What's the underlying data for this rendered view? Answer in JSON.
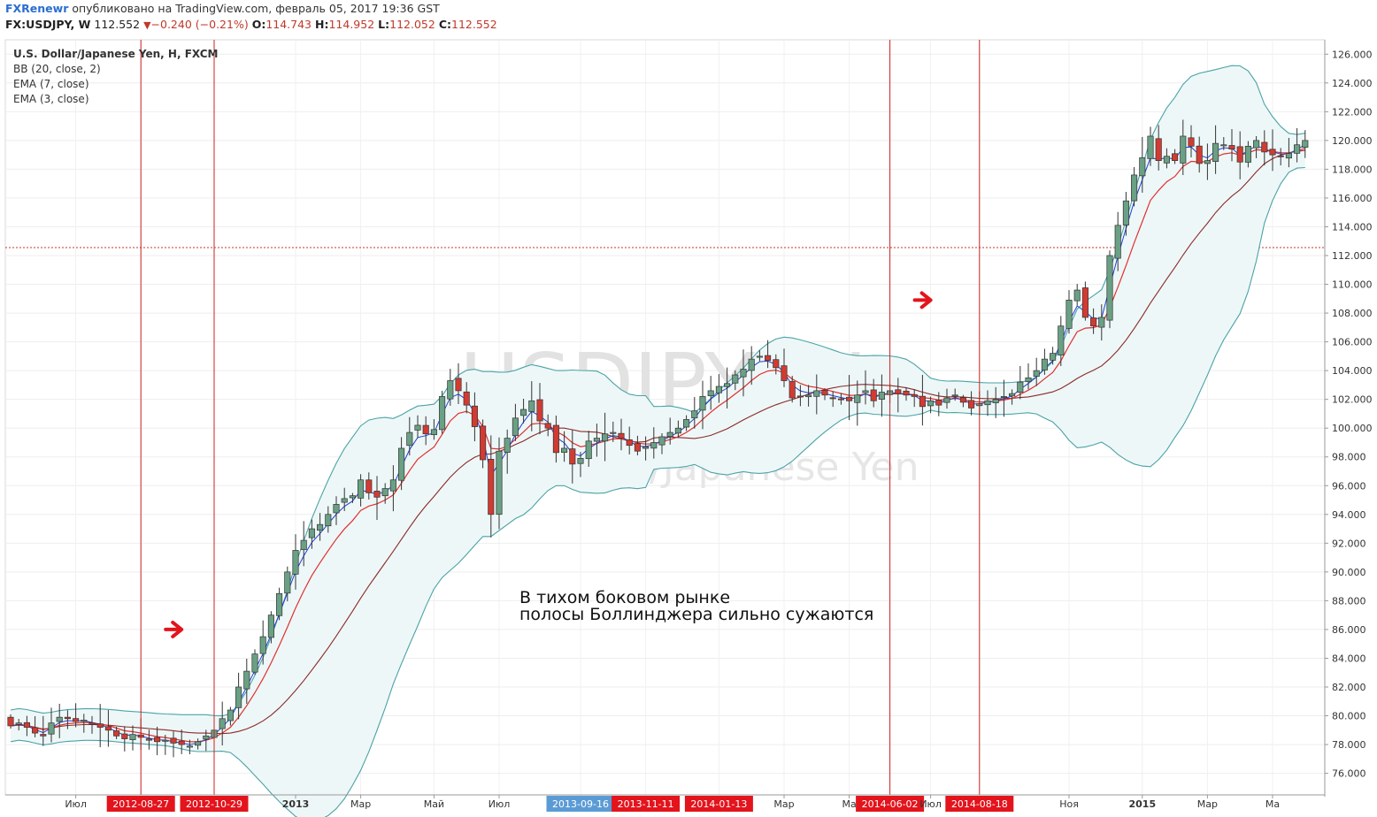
{
  "header": {
    "brand": "FXRenewr",
    "published": "опубликовано на TradingView.com, февраль 05, 2017 19:36 GST",
    "symbol": "FX:USDJPY, W",
    "last": "112.552",
    "change": "−0.240 (−0.21%)",
    "open_label": "O:",
    "open": "114.743",
    "high_label": "H:",
    "high": "114.952",
    "low_label": "L:",
    "low": "112.052",
    "close_label": "C:",
    "close": "112.552"
  },
  "legend": {
    "title": "U.S. Dollar/Japanese Yen, H, FXCM",
    "items": [
      "BB (20, close, 2)",
      "EMA (7, close)",
      "EMA (3, close)"
    ]
  },
  "watermark": {
    "symbol": "USDJPY, H",
    "name": "U.S. Dollar/Japanese Yen"
  },
  "annotation": {
    "line1": "В тихом боковом рынке",
    "line2": "полосы Боллинджера сильно сужаются"
  },
  "colors": {
    "up": "#6aa084",
    "down": "#d23b32",
    "band": "#4aa3a8",
    "band_fill": "#eef7f7",
    "ema_fast": "#1f3fd6",
    "ema_mid": "#e03030",
    "bb_basis": "#8b2a2a",
    "vline": "#cc2222",
    "hl_red": "#e3141c",
    "hl_blue": "#5b9bd5"
  },
  "chart_data": {
    "type": "candlestick",
    "ylim": [
      74.5,
      127
    ],
    "y_ticks": [
      "76.000",
      "78.000",
      "80.000",
      "82.000",
      "84.000",
      "86.000",
      "88.000",
      "90.000",
      "92.000",
      "94.000",
      "96.000",
      "98.000",
      "100.000",
      "102.000",
      "104.000",
      "106.000",
      "108.000",
      "110.000",
      "112.000",
      "114.000",
      "116.000",
      "118.000",
      "120.000",
      "122.000",
      "124.000",
      "126.000"
    ],
    "current_price": 112.552,
    "x_labels": [
      {
        "text": "Июл",
        "i": 8,
        "hl": ""
      },
      {
        "text": "2012-08-27",
        "i": 16,
        "hl": "red"
      },
      {
        "text": "2012-10-29",
        "i": 25,
        "hl": "red"
      },
      {
        "text": "2013",
        "i": 35,
        "hl": ""
      },
      {
        "text": "Мар",
        "i": 43,
        "hl": ""
      },
      {
        "text": "Май",
        "i": 52,
        "hl": ""
      },
      {
        "text": "Июл",
        "i": 60,
        "hl": ""
      },
      {
        "text": "2013-09-16",
        "i": 70,
        "hl": "blue"
      },
      {
        "text": "2013-11-11",
        "i": 78,
        "hl": "red"
      },
      {
        "text": "2014-01-13",
        "i": 87,
        "hl": "red"
      },
      {
        "text": "Мар",
        "i": 95,
        "hl": ""
      },
      {
        "text": "Ма",
        "i": 103,
        "hl": ""
      },
      {
        "text": "2014-06-02",
        "i": 108,
        "hl": "red"
      },
      {
        "text": "Июл",
        "i": 113,
        "hl": ""
      },
      {
        "text": "2014-08-18",
        "i": 119,
        "hl": "red"
      },
      {
        "text": "Ноя",
        "i": 130,
        "hl": ""
      },
      {
        "text": "2015",
        "i": 139,
        "hl": ""
      },
      {
        "text": "Мар",
        "i": 147,
        "hl": ""
      },
      {
        "text": "Ма",
        "i": 155,
        "hl": ""
      }
    ],
    "vlines": [
      16,
      25,
      108,
      119
    ],
    "arrows": [
      {
        "i": 21,
        "y": 86.0
      },
      {
        "i": 113,
        "y": 108.9
      }
    ],
    "close": [
      79.3,
      79.5,
      79.2,
      78.8,
      78.6,
      79.5,
      79.9,
      79.8,
      79.6,
      79.7,
      79.4,
      79.2,
      79.0,
      78.6,
      78.4,
      78.7,
      78.5,
      78.3,
      78.2,
      78.3,
      78.1,
      78.0,
      77.9,
      78.2,
      78.6,
      79.0,
      79.8,
      80.4,
      82.0,
      83.1,
      84.3,
      85.5,
      87.0,
      88.5,
      90.0,
      91.5,
      92.2,
      93.0,
      93.3,
      94.0,
      94.7,
      95.1,
      95.3,
      96.4,
      95.5,
      95.2,
      95.8,
      96.4,
      98.6,
      99.7,
      100.2,
      99.6,
      99.9,
      102.2,
      103.3,
      102.6,
      101.6,
      100.1,
      97.8,
      94.0,
      98.4,
      99.3,
      100.7,
      101.3,
      101.9,
      100.5,
      100.0,
      98.3,
      98.6,
      97.5,
      97.9,
      99.1,
      99.3,
      99.6,
      99.7,
      99.3,
      98.8,
      98.4,
      98.7,
      99.0,
      99.4,
      99.7,
      100.0,
      100.6,
      101.2,
      102.2,
      102.6,
      102.9,
      103.1,
      103.7,
      104.1,
      104.8,
      105.0,
      104.7,
      104.2,
      103.3,
      102.1,
      102.2,
      102.3,
      102.6,
      102.3,
      102.1,
      102.0,
      101.9,
      102.3,
      102.6,
      101.9,
      102.5,
      102.6,
      102.4,
      102.3,
      102.2,
      101.5,
      101.9,
      101.6,
      102.1,
      102.3,
      101.8,
      101.4,
      101.7,
      101.9,
      102.0,
      102.2,
      102.4,
      103.2,
      103.5,
      104.0,
      104.8,
      105.2,
      107.1,
      108.9,
      109.6,
      107.7,
      107.1,
      107.7,
      112.0,
      114.1,
      115.8,
      117.6,
      118.8,
      120.3,
      118.6,
      118.9,
      118.6,
      120.3,
      119.6,
      118.4,
      118.6,
      119.8,
      119.7,
      119.4,
      118.5,
      119.6,
      120.0,
      119.2,
      119.0,
      118.9,
      119.1,
      119.7,
      120.0
    ],
    "ema_fast_note": "blue EMA(3)",
    "ema_mid_note": "red EMA(7)"
  }
}
